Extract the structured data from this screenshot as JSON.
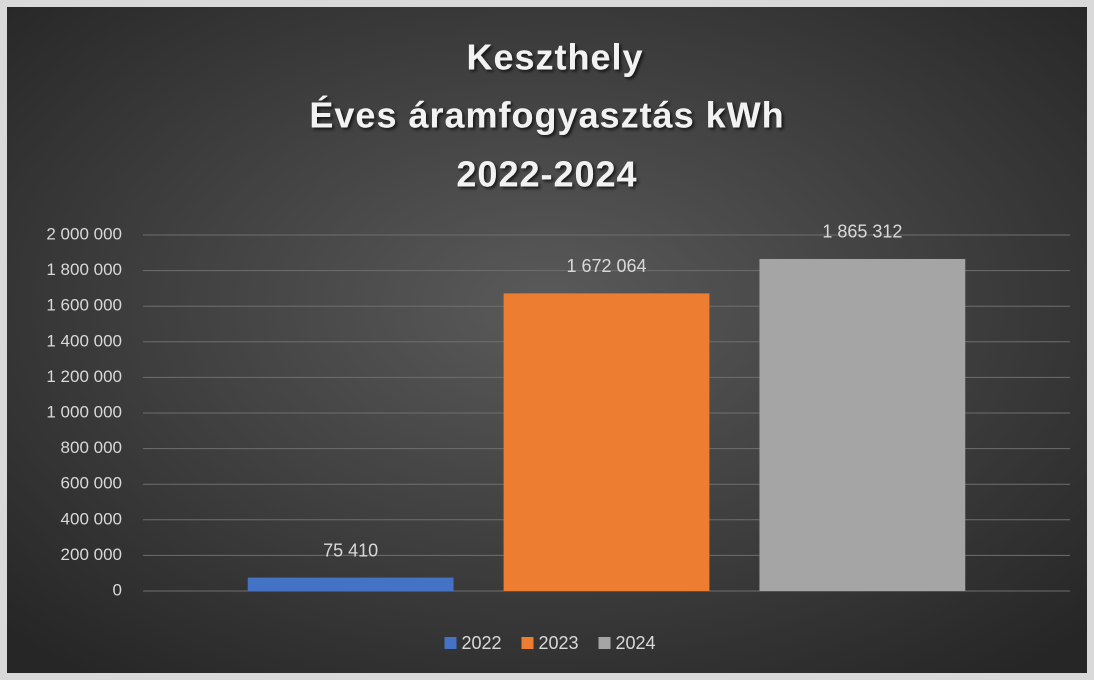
{
  "chart_data": {
    "type": "bar",
    "title": [
      "Keszthely",
      "Éves áramfogyasztás kWh",
      "2022-2024"
    ],
    "categories": [
      null
    ],
    "series": [
      {
        "name": "2022",
        "color": "#4472c4",
        "values": [
          75410
        ],
        "value_labels": [
          "75 410"
        ]
      },
      {
        "name": "2023",
        "color": "#ed7d31",
        "values": [
          1672064
        ],
        "value_labels": [
          "1 672 064"
        ]
      },
      {
        "name": "2024",
        "color": "#a5a5a5",
        "values": [
          1865312
        ],
        "value_labels": [
          "1 865 312"
        ]
      }
    ],
    "ylim": [
      0,
      2000000
    ],
    "yticks": [
      0,
      {
        "value": 200000,
        "label": "200 000"
      },
      {
        "value": 400000,
        "label": "400 000"
      },
      {
        "value": 600000,
        "label": "600 000"
      },
      {
        "value": 800000,
        "label": "800 000"
      },
      {
        "value": 1000000,
        "label": "1 000 000"
      },
      {
        "value": 1200000,
        "label": "1 200 000"
      },
      {
        "value": 1400000,
        "label": "1 400 000"
      },
      {
        "value": 1600000,
        "label": "1 600 000"
      },
      {
        "value": 1800000,
        "label": "1 800 000"
      },
      {
        "value": 2000000,
        "label": "2 000 000"
      }
    ],
    "grid": true,
    "legend": "bottom"
  }
}
